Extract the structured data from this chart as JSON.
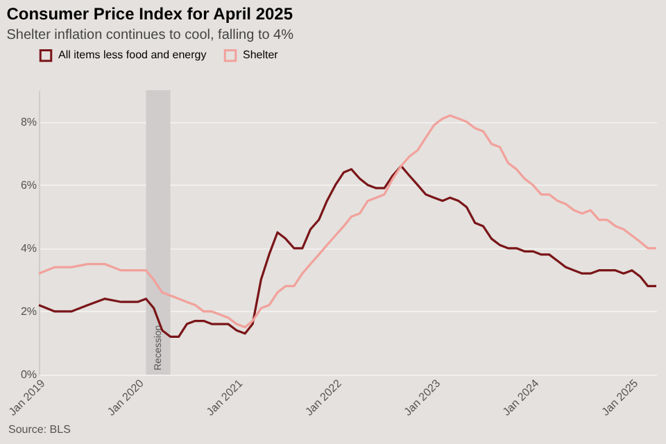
{
  "chart_data": {
    "type": "line",
    "title": "Consumer Price Index for April 2025",
    "subtitle": "Shelter inflation continues to cool, falling to 4%",
    "x": [
      "2019-01",
      "2019-03",
      "2019-05",
      "2019-07",
      "2019-09",
      "2019-11",
      "2020-01",
      "2020-02",
      "2020-03",
      "2020-04",
      "2020-05",
      "2020-06",
      "2020-07",
      "2020-08",
      "2020-09",
      "2020-10",
      "2020-11",
      "2020-12",
      "2021-01",
      "2021-02",
      "2021-03",
      "2021-04",
      "2021-05",
      "2021-06",
      "2021-07",
      "2021-08",
      "2021-09",
      "2021-10",
      "2021-11",
      "2021-12",
      "2022-01",
      "2022-02",
      "2022-03",
      "2022-04",
      "2022-05",
      "2022-06",
      "2022-07",
      "2022-08",
      "2022-09",
      "2022-10",
      "2022-11",
      "2022-12",
      "2023-01",
      "2023-02",
      "2023-03",
      "2023-04",
      "2023-05",
      "2023-06",
      "2023-07",
      "2023-08",
      "2023-09",
      "2023-10",
      "2023-11",
      "2023-12",
      "2024-01",
      "2024-02",
      "2024-03",
      "2024-04",
      "2024-05",
      "2024-06",
      "2024-07",
      "2024-08",
      "2024-09",
      "2024-10",
      "2024-11",
      "2024-12",
      "2025-01",
      "2025-02",
      "2025-03",
      "2025-04"
    ],
    "series": [
      {
        "name": "All items less food and energy",
        "color": "#7a1518",
        "values": [
          2.2,
          2.0,
          2.0,
          2.2,
          2.4,
          2.3,
          2.3,
          2.4,
          2.1,
          1.4,
          1.2,
          1.2,
          1.6,
          1.7,
          1.7,
          1.6,
          1.6,
          1.6,
          1.4,
          1.3,
          1.6,
          3.0,
          3.8,
          4.5,
          4.3,
          4.0,
          4.0,
          4.6,
          4.9,
          5.5,
          6.0,
          6.4,
          6.5,
          6.2,
          6.0,
          5.9,
          5.9,
          6.3,
          6.6,
          6.3,
          6.0,
          5.7,
          5.6,
          5.5,
          5.6,
          5.5,
          5.3,
          4.8,
          4.7,
          4.3,
          4.1,
          4.0,
          4.0,
          3.9,
          3.9,
          3.8,
          3.8,
          3.6,
          3.4,
          3.3,
          3.2,
          3.2,
          3.3,
          3.3,
          3.3,
          3.2,
          3.3,
          3.1,
          2.8,
          2.8
        ]
      },
      {
        "name": "Shelter",
        "color": "#f2a19b",
        "values": [
          3.2,
          3.4,
          3.4,
          3.5,
          3.5,
          3.3,
          3.3,
          3.3,
          3.0,
          2.6,
          2.5,
          2.4,
          2.3,
          2.2,
          2.0,
          2.0,
          1.9,
          1.8,
          1.6,
          1.5,
          1.7,
          2.1,
          2.2,
          2.6,
          2.8,
          2.8,
          3.2,
          3.5,
          3.8,
          4.1,
          4.4,
          4.7,
          5.0,
          5.1,
          5.5,
          5.6,
          5.7,
          6.2,
          6.6,
          6.9,
          7.1,
          7.5,
          7.9,
          8.1,
          8.2,
          8.1,
          8.0,
          7.8,
          7.7,
          7.3,
          7.2,
          6.7,
          6.5,
          6.2,
          6.0,
          5.7,
          5.7,
          5.5,
          5.4,
          5.2,
          5.1,
          5.2,
          4.9,
          4.9,
          4.7,
          4.6,
          4.4,
          4.2,
          4.0,
          4.0
        ]
      }
    ],
    "xlim": [
      "2019-01",
      "2025-04"
    ],
    "xticks": [
      {
        "value": "2019-01",
        "label": "Jan 2019"
      },
      {
        "value": "2020-01",
        "label": "Jan 2020"
      },
      {
        "value": "2021-01",
        "label": "Jan 2021"
      },
      {
        "value": "2022-01",
        "label": "Jan 2022"
      },
      {
        "value": "2023-01",
        "label": "Jan 2023"
      },
      {
        "value": "2024-01",
        "label": "Jan 2024"
      },
      {
        "value": "2025-01",
        "label": "Jan 2025"
      }
    ],
    "ylim": [
      0,
      9
    ],
    "yticks": [
      {
        "value": 0,
        "label": "0%"
      },
      {
        "value": 2,
        "label": "2%"
      },
      {
        "value": 4,
        "label": "4%"
      },
      {
        "value": 6,
        "label": "6%"
      },
      {
        "value": 8,
        "label": "8%"
      }
    ],
    "bands": [
      {
        "axis": "x",
        "from": "2020-02",
        "to": "2020-05",
        "label": "Recession",
        "color": "#cfcccb"
      }
    ],
    "grid": "y",
    "legend": "top left",
    "marker": "none",
    "line_style": "solid",
    "annotations": [
      "Source: BLS"
    ]
  }
}
